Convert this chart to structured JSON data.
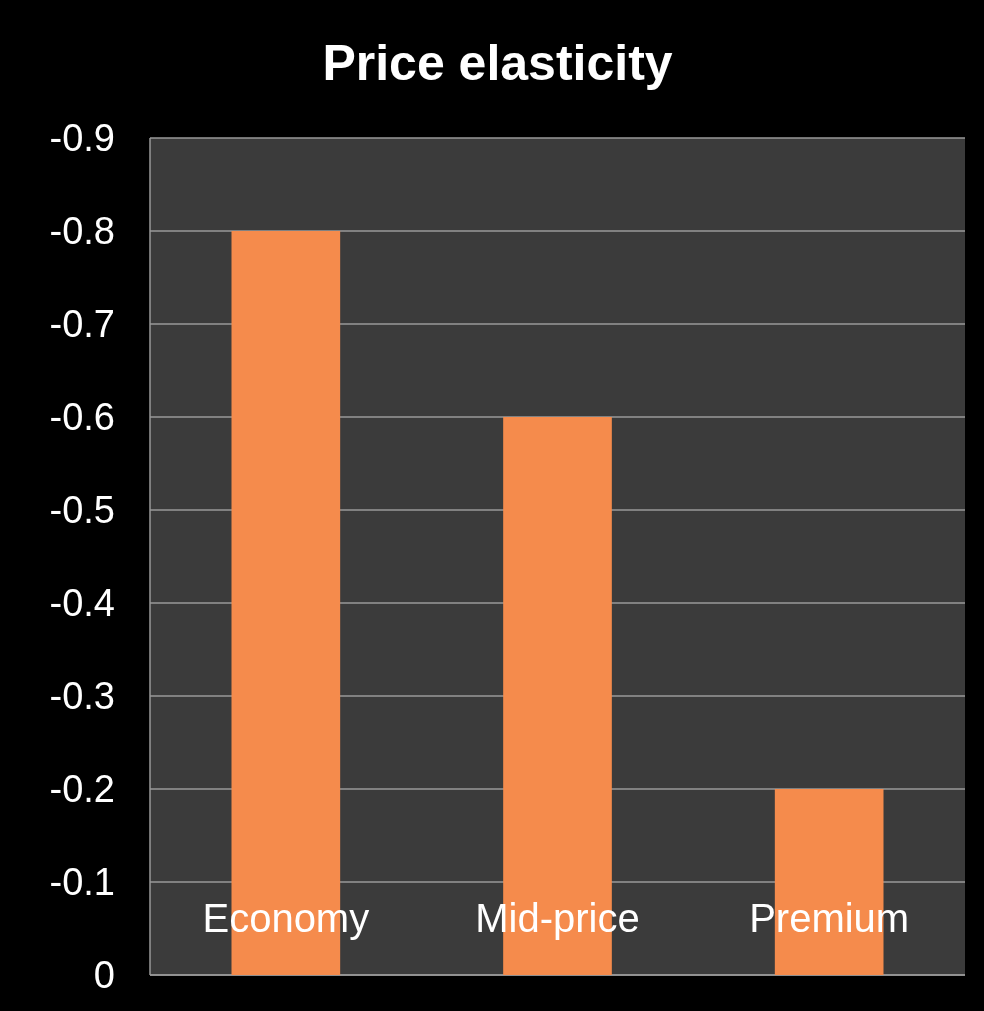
{
  "chart_data": {
    "type": "bar",
    "title": "Price elasticity",
    "categories": [
      "Economy",
      "Mid-price",
      "Premium"
    ],
    "values": [
      -0.8,
      -0.6,
      -0.2
    ],
    "color": "#f58b4c",
    "ylim": [
      0,
      -0.9
    ],
    "yticks": [
      0,
      -0.1,
      -0.2,
      -0.3,
      -0.4,
      -0.5,
      -0.6,
      -0.7,
      -0.8,
      -0.9
    ],
    "grid": "y"
  }
}
